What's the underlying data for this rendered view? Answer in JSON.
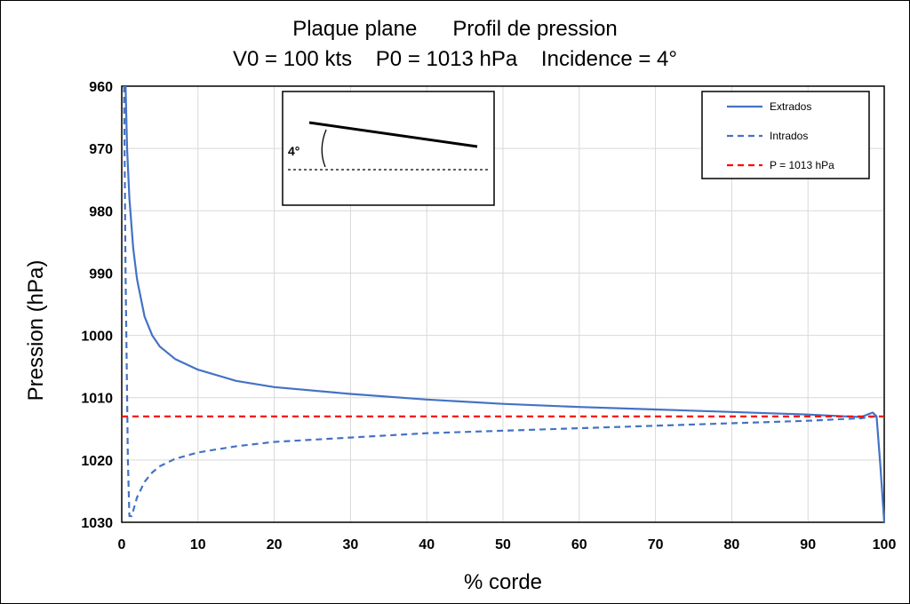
{
  "chart_data": {
    "type": "line",
    "title_line1": "Plaque plane      Profil de pression",
    "title_line2": "V0 = 100 kts    P0 = 1013 hPa    Incidence = 4°",
    "xlabel": "% corde",
    "ylabel": "Pression (hPa)",
    "xlim": [
      0,
      100
    ],
    "ylim": [
      960,
      1030
    ],
    "y_inverted": true,
    "x_ticks": [
      0,
      10,
      20,
      30,
      40,
      50,
      60,
      70,
      80,
      90,
      100
    ],
    "y_ticks": [
      960,
      970,
      980,
      990,
      1000,
      1010,
      1020,
      1030
    ],
    "grid": true,
    "legend_position": "top-right",
    "series": [
      {
        "name": "Extrados",
        "color": "#4472C4",
        "style": "solid",
        "x": [
          0.5,
          0.7,
          1,
          1.5,
          2,
          3,
          4,
          5,
          7,
          10,
          15,
          20,
          30,
          40,
          50,
          60,
          70,
          80,
          90,
          95,
          97,
          98,
          98.5,
          99,
          99.5,
          100
        ],
        "y": [
          960,
          970,
          978,
          986,
          991,
          997,
          1000,
          1001.8,
          1003.8,
          1005.5,
          1007.3,
          1008.3,
          1009.4,
          1010.3,
          1011,
          1011.5,
          1011.9,
          1012.3,
          1012.7,
          1013,
          1013.1,
          1012.6,
          1012.4,
          1013,
          1021,
          1030
        ]
      },
      {
        "name": "Intrados",
        "color": "#4472C4",
        "style": "dashed",
        "x": [
          0.3,
          0.5,
          0.8,
          1,
          1.3,
          2,
          3,
          4,
          5,
          7,
          10,
          15,
          20,
          30,
          40,
          50,
          60,
          70,
          80,
          90,
          95,
          97,
          98,
          99
        ],
        "y": [
          960,
          990,
          1020,
          1029,
          1029,
          1026,
          1023.5,
          1022,
          1021,
          1019.8,
          1018.8,
          1017.8,
          1017.1,
          1016.4,
          1015.7,
          1015.3,
          1014.9,
          1014.5,
          1014.1,
          1013.7,
          1013.4,
          1013.3,
          1013.1,
          1013
        ]
      },
      {
        "name": "P = 1013 hPa",
        "color": "#FF0000",
        "style": "dashed",
        "x": [
          0,
          100
        ],
        "y": [
          1013,
          1013
        ]
      }
    ]
  },
  "inset": {
    "angle_label": "4°"
  }
}
